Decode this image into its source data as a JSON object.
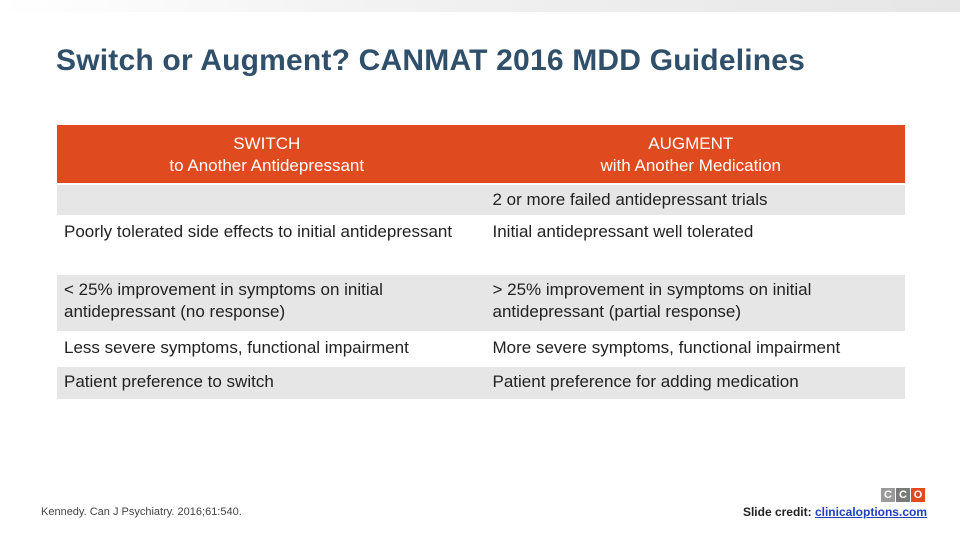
{
  "slide": {
    "title": "Switch or Augment? CANMAT 2016 MDD Guidelines"
  },
  "table": {
    "header_switch": "SWITCH\nto Another Antidepressant",
    "header_augment": "AUGMENT\nwith Another Medication",
    "rows": [
      {
        "switch": "",
        "augment": "2 or more failed antidepressant trials"
      },
      {
        "switch": "Poorly tolerated side effects to initial antidepressant",
        "augment": "Initial antidepressant well tolerated"
      },
      {
        "switch": "< 25% improvement in symptoms on initial antidepressant (no response)",
        "augment": "> 25% improvement in symptoms on initial antidepressant (partial response)"
      },
      {
        "switch": "Less severe symptoms, functional impairment",
        "augment": "More severe symptoms, functional impairment"
      },
      {
        "switch": "Patient preference to switch",
        "augment": "Patient preference for adding medication"
      }
    ]
  },
  "footer": {
    "citation": "Kennedy. Can J Psychiatry. 2016;61:540.",
    "credit_label": "Slide credit:",
    "credit_link": "clinicaloptions.com",
    "logo_letters": [
      "C",
      "C",
      "O"
    ]
  },
  "colors": {
    "header_bg": "#e04a1f",
    "title": "#2f4f6a",
    "shade_row": "#e6e6e6",
    "link": "#1f3fbf"
  }
}
